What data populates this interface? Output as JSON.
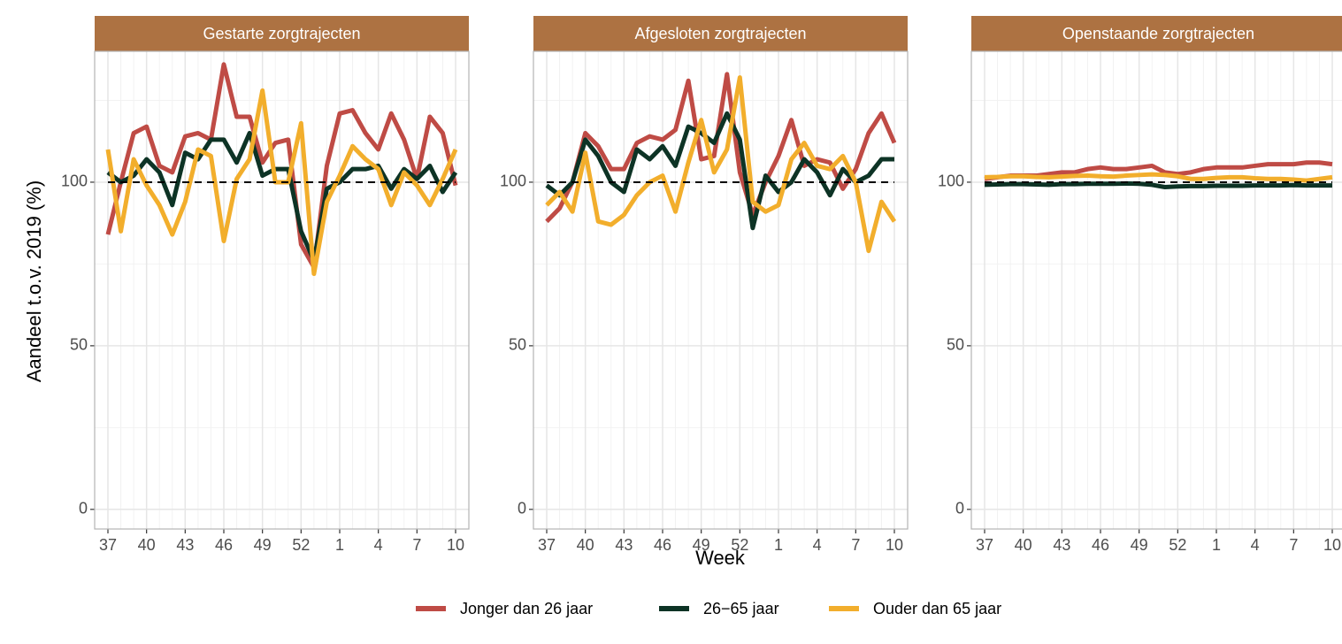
{
  "y_label": "Aandeel t.o.v. 2019 (%)",
  "x_label": "Week",
  "chart_data": [
    {
      "type": "line",
      "title": "Gestarte zorgtrajecten",
      "categories": [
        "37",
        null,
        null,
        "40",
        null,
        null,
        "43",
        null,
        null,
        "46",
        null,
        null,
        "49",
        null,
        null,
        "52",
        null,
        null,
        "1",
        null,
        null,
        "4",
        null,
        null,
        "7",
        null,
        null,
        "10"
      ],
      "ylim": [
        -6,
        140
      ],
      "yticks": [
        0,
        50,
        100
      ],
      "minor_yticks": [
        25,
        75,
        125
      ],
      "hline": 100,
      "grid": true,
      "series": [
        {
          "name": "Jonger dan 26 jaar",
          "color": "#bf4b45",
          "values": [
            84,
            100,
            115,
            117,
            105,
            103,
            114,
            115,
            113,
            136,
            120,
            120,
            106,
            112,
            113,
            81,
            74,
            105,
            121,
            122,
            115,
            110,
            121,
            113,
            101,
            120,
            115,
            99
          ]
        },
        {
          "name": "26−65 jaar",
          "color": "#0d3325",
          "values": [
            103,
            100,
            102,
            107,
            103,
            93,
            109,
            107,
            113,
            113,
            106,
            115,
            102,
            104,
            104,
            85,
            76,
            98,
            100,
            104,
            104,
            105,
            98,
            104,
            101,
            105,
            97,
            103
          ]
        },
        {
          "name": "Ouder dan 65 jaar",
          "color": "#f2ae2c",
          "values": [
            110,
            85,
            107,
            99,
            93,
            84,
            94,
            110,
            108,
            82,
            101,
            107,
            128,
            100,
            100,
            118,
            72,
            94,
            102,
            111,
            107,
            104,
            93,
            103,
            99,
            93,
            101,
            110
          ]
        }
      ]
    },
    {
      "type": "line",
      "title": "Afgesloten zorgtrajecten",
      "categories": [
        "37",
        null,
        null,
        "40",
        null,
        null,
        "43",
        null,
        null,
        "46",
        null,
        null,
        "49",
        null,
        null,
        "52",
        null,
        null,
        "1",
        null,
        null,
        "4",
        null,
        null,
        "7",
        null,
        null,
        "10"
      ],
      "ylim": [
        -6,
        140
      ],
      "yticks": [
        0,
        50,
        100
      ],
      "minor_yticks": [
        25,
        75,
        125
      ],
      "hline": 100,
      "grid": true,
      "series": [
        {
          "name": "Jonger dan 26 jaar",
          "color": "#bf4b45",
          "values": [
            88,
            92,
            100,
            115,
            111,
            104,
            104,
            112,
            114,
            113,
            116,
            131,
            107,
            108,
            133,
            103,
            90,
            100,
            108,
            119,
            105,
            107,
            106,
            98,
            104,
            115,
            121,
            112
          ]
        },
        {
          "name": "26−65 jaar",
          "color": "#0d3325",
          "values": [
            99,
            96,
            100,
            113,
            108,
            100,
            97,
            110,
            107,
            111,
            105,
            117,
            115,
            112,
            121,
            113,
            86,
            102,
            97,
            100,
            107,
            103,
            96,
            104,
            100,
            102,
            107,
            107
          ]
        },
        {
          "name": "Ouder dan 65 jaar",
          "color": "#f2ae2c",
          "values": [
            93,
            97,
            91,
            109,
            88,
            87,
            90,
            96,
            100,
            102,
            91,
            106,
            119,
            103,
            110,
            132,
            94,
            91,
            93,
            107,
            112,
            105,
            104,
            108,
            100,
            79,
            94,
            88
          ]
        }
      ]
    },
    {
      "type": "line",
      "title": "Openstaande zorgtrajecten",
      "categories": [
        "37",
        null,
        null,
        "40",
        null,
        null,
        "43",
        null,
        null,
        "46",
        null,
        null,
        "49",
        null,
        null,
        "52",
        null,
        null,
        "1",
        null,
        null,
        "4",
        null,
        null,
        "7",
        null,
        null,
        "10"
      ],
      "ylim": [
        -6,
        140
      ],
      "yticks": [
        0,
        50,
        100
      ],
      "minor_yticks": [
        25,
        75,
        125
      ],
      "hline": 100,
      "grid": true,
      "series": [
        {
          "name": "Jonger dan 26 jaar",
          "color": "#bf4b45",
          "values": [
            101,
            101.5,
            102,
            102,
            102,
            102.5,
            103,
            103,
            104,
            104.5,
            104,
            104,
            104.5,
            105,
            103,
            102.5,
            103,
            104,
            104.5,
            104.5,
            104.5,
            105,
            105.5,
            105.5,
            105.5,
            106,
            106,
            105.5
          ]
        },
        {
          "name": "26−65 jaar",
          "color": "#0d3325",
          "values": [
            99.2,
            99.3,
            99.4,
            99.4,
            99.3,
            99.2,
            99.4,
            99.4,
            99.5,
            99.5,
            99.5,
            99.6,
            99.5,
            99.2,
            98.5,
            98.7,
            98.8,
            98.8,
            98.9,
            98.9,
            98.9,
            99,
            99,
            99,
            99.1,
            99,
            99,
            99
          ]
        },
        {
          "name": "Ouder dan 65 jaar",
          "color": "#f2ae2c",
          "values": [
            101.5,
            101.6,
            101.8,
            101.8,
            101.6,
            101.5,
            101.7,
            101.9,
            102,
            101.8,
            101.7,
            102,
            102.2,
            102.4,
            102.2,
            101.8,
            101,
            101,
            101.3,
            101.5,
            101.5,
            101.2,
            101,
            101,
            100.8,
            100.5,
            101,
            101.5
          ]
        }
      ]
    }
  ]
}
